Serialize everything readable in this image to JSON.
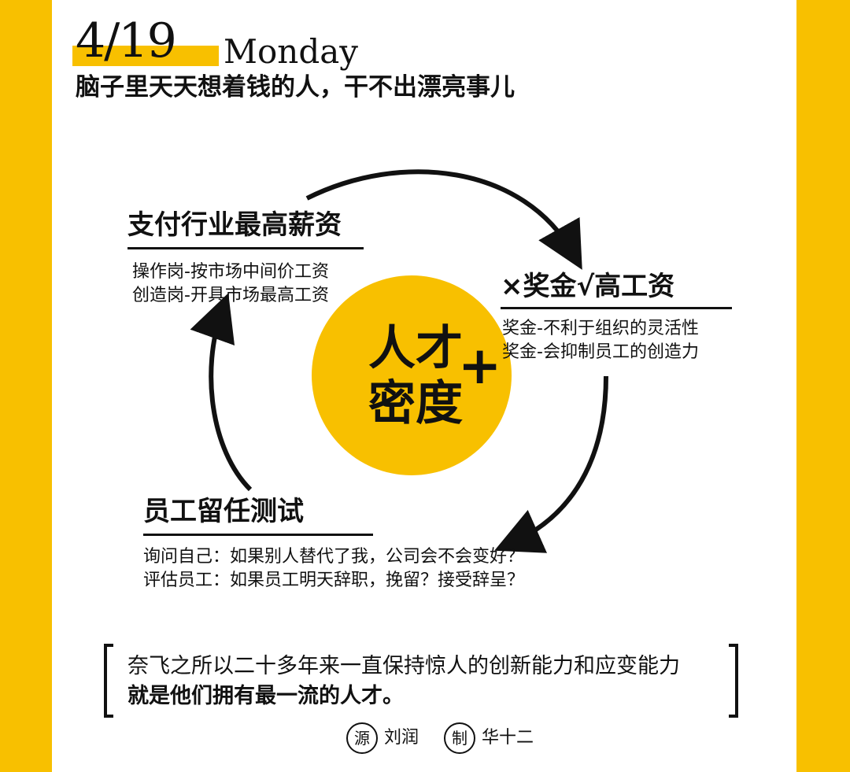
{
  "header": {
    "date": "4/19",
    "weekday": "Monday",
    "subtitle": "脑子里天天想着钱的人，干不出漂亮事儿"
  },
  "center": {
    "line1": "人才",
    "line2": "密度",
    "plus": "+"
  },
  "nodes": {
    "salary": {
      "title": "支付行业最高薪资",
      "lines": [
        "操作岗-按市场中间价工资",
        "创造岗-开具市场最高工资"
      ]
    },
    "bonus": {
      "title": "×奖金√高工资",
      "lines": [
        "奖金-不利于组织的灵活性",
        "奖金-会抑制员工的创造力"
      ]
    },
    "retention": {
      "title": "员工留任测试",
      "lines": [
        "询问自己：如果别人替代了我，公司会不会变好？",
        "评估员工：如果员工明天辞职，挽留？接受辞呈？"
      ]
    }
  },
  "quote": {
    "line1": "奈飞之所以二十多年来一直保持惊人的创新能力和应变能力",
    "line2": "就是他们拥有最一流的人才。"
  },
  "credits": {
    "source_badge": "源",
    "source_name": "刘润",
    "maker_badge": "制",
    "maker_name": "华十二"
  },
  "colors": {
    "accent": "#f8c000",
    "ink": "#111111",
    "paper": "#ffffff"
  }
}
